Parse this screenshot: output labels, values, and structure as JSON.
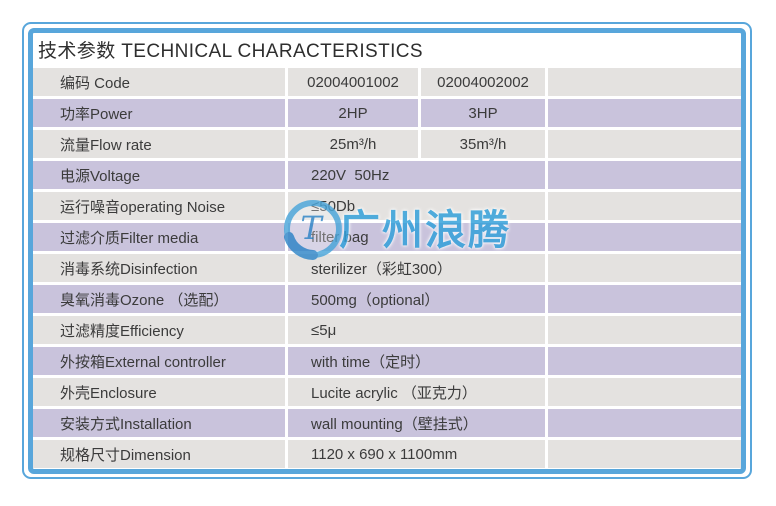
{
  "header": {
    "title": "技术参数 TECHNICAL CHARACTERISTICS"
  },
  "table": {
    "rows": [
      {
        "label": "编码 Code",
        "values": [
          "02004001002",
          "02004002002"
        ]
      },
      {
        "label": "功率Power",
        "values": [
          "2HP",
          "3HP"
        ]
      },
      {
        "label": "流量Flow rate",
        "values": [
          "25m³/h",
          "35m³/h"
        ]
      },
      {
        "label": "电源Voltage",
        "value": "220V  50Hz"
      },
      {
        "label": "运行噪音operating Noise",
        "value": "≤50Db"
      },
      {
        "label": "过滤介质Filter media",
        "value": "filter bag"
      },
      {
        "label": "消毒系统Disinfection",
        "value": "sterilizer（彩虹300）"
      },
      {
        "label": "臭氧消毒Ozone （选配）",
        "value": "500mg（optional）"
      },
      {
        "label": "过滤精度Efficiency",
        "value": "≤5μ"
      },
      {
        "label": "外按箱External controller",
        "value": "with time（定时）"
      },
      {
        "label": "外壳Enclosure",
        "value": "Lucite acrylic （亚克力）"
      },
      {
        "label": "安装方式Installation",
        "value": "wall mounting（壁挂式）"
      },
      {
        "label": "规格尺寸Dimension",
        "value": "1120 x 690 x 1100mm"
      }
    ]
  },
  "watermark": {
    "logo_letter": "T",
    "text": "广州浪腾"
  },
  "colors": {
    "row_gray": "#e4e2e0",
    "row_purple": "#c9c3dc",
    "border_blue": "#58a6db",
    "text": "#3b3b3b",
    "watermark_blue": "#2f9fda"
  }
}
